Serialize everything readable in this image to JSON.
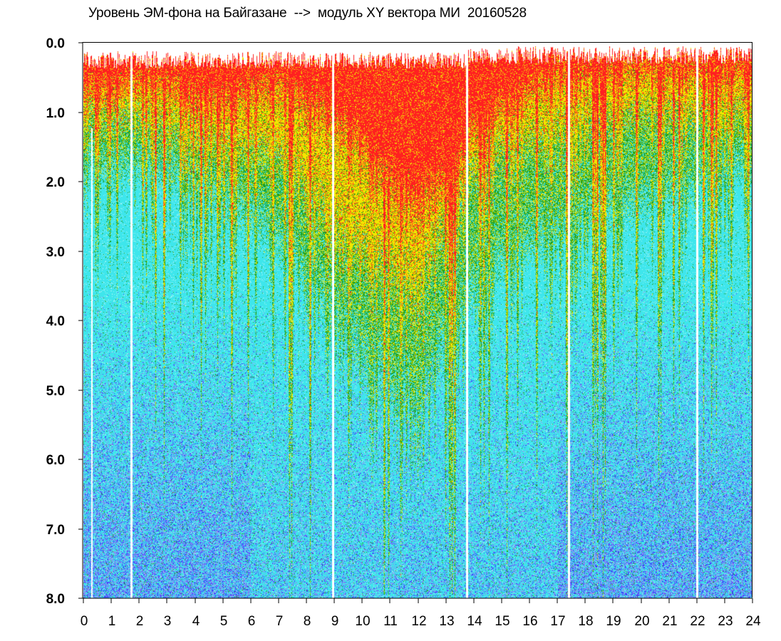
{
  "chart_data": {
    "type": "heatmap",
    "title": "Уровень ЭМ-фона на Байгазане  -->  модуль XY вектора МИ  20160528",
    "xlabel": "",
    "ylabel": "",
    "x_ticks": [
      "0",
      "1",
      "2",
      "3",
      "4",
      "5",
      "6",
      "7",
      "8",
      "9",
      "10",
      "11",
      "12",
      "13",
      "14",
      "15",
      "16",
      "17",
      "18",
      "19",
      "20",
      "21",
      "22",
      "23",
      "24"
    ],
    "y_ticks": [
      "0.0",
      "1.0",
      "2.0",
      "3.0",
      "4.0",
      "5.0",
      "6.0",
      "7.0",
      "8.0"
    ],
    "xlim": [
      0,
      24
    ],
    "ylim": [
      8,
      0
    ],
    "grid": false,
    "legend": "none",
    "colors": {
      "red": "#ff2020",
      "yellow": "#f2e600",
      "green": "#1ea01e",
      "cyan": "#3ee6ec",
      "blue": "#3c3cff",
      "background": "#ffffff"
    },
    "depth_profile": {
      "hours": [
        0,
        1,
        2,
        3,
        4,
        5,
        6,
        7,
        8,
        9,
        10,
        11,
        12,
        13,
        14,
        15,
        16,
        17,
        18,
        19,
        20,
        21,
        22,
        23,
        24
      ],
      "red_edge": [
        0.6,
        0.7,
        0.5,
        0.6,
        0.7,
        0.8,
        0.7,
        0.6,
        0.8,
        1.0,
        1.5,
        2.0,
        2.2,
        2.0,
        1.2,
        0.9,
        0.7,
        0.4,
        0.4,
        0.4,
        0.4,
        0.4,
        0.4,
        0.4,
        0.4
      ],
      "yellow_edge": [
        1.0,
        1.1,
        1.0,
        1.2,
        1.2,
        1.5,
        1.5,
        1.6,
        2.0,
        2.6,
        3.0,
        3.2,
        3.3,
        2.6,
        1.8,
        1.5,
        1.4,
        1.2,
        1.1,
        1.1,
        1.0,
        1.0,
        1.0,
        1.0,
        1.0
      ],
      "green_edge": [
        1.6,
        1.8,
        1.7,
        1.8,
        2.0,
        2.2,
        2.4,
        2.8,
        3.2,
        3.8,
        4.4,
        4.8,
        4.9,
        4.2,
        3.4,
        3.0,
        2.8,
        2.6,
        2.4,
        2.3,
        2.2,
        2.1,
        2.0,
        1.8,
        1.6
      ]
    },
    "gaps_hours": [
      0.3,
      1.7,
      8.95,
      13.75,
      17.4,
      22.0
    ]
  }
}
